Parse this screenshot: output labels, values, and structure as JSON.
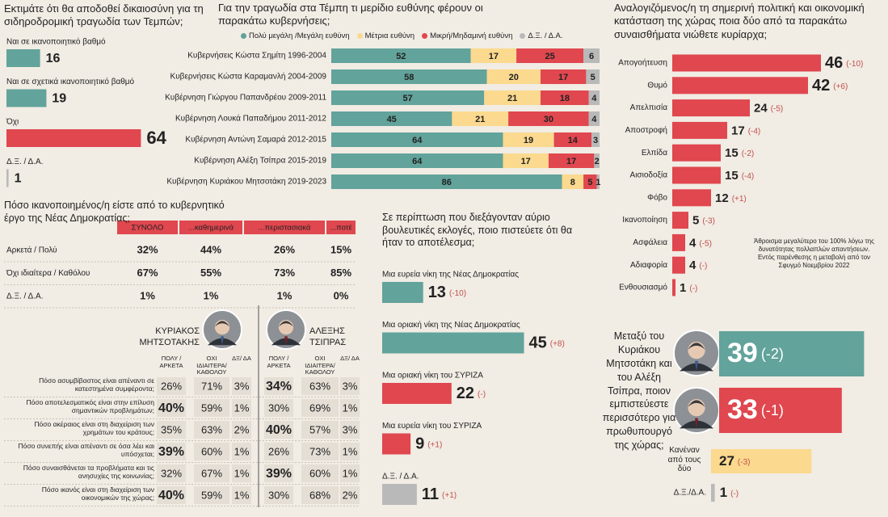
{
  "chart_data": [
    {
      "type": "bar",
      "title": "Εκτιμάτε ότι θα αποδοθεί δικαιοσύνη για τη σιδηροδρομική τραγωδία των Τεμπών;",
      "categories": [
        "Ναι σε ικανοποιητικό βαθμό",
        "Ναι σε σχετικά ικανοποιητικό βαθμό",
        "Όχι",
        "Δ.Ξ. / Δ.Α."
      ],
      "values": [
        16,
        19,
        64,
        1
      ],
      "colors": [
        "#62a39b",
        "#62a39b",
        "#e0474f",
        "#b9b9b9"
      ]
    },
    {
      "type": "stacked_bar",
      "title": "Για την τραγωδία στα Τέμπη τι μερίδιο ευθύνης φέρουν οι παρακάτω κυβερνήσεις;",
      "categories": [
        "Κυβερνήσεις Κώστα Σημίτη 1996-2004",
        "Κυβερνήσεις Κώστα Καραμανλή 2004-2009",
        "Κυβέρνηση Γιώργου Παπανδρέου 2009-2011",
        "Κυβέρνηση Λουκά Παπαδήμου 2011-2012",
        "Κυβέρνηση Αντώνη Σαμαρά 2012-2015",
        "Κυβέρνηση Αλέξη Τσίπρα 2015-2019",
        "Κυβέρνηση Κυριάκου Μητσοτάκη 2019-2023"
      ],
      "series": [
        {
          "name": "Πολύ μεγάλη /Μεγάλη ευθύνη",
          "color": "#62a39b",
          "values": [
            52,
            58,
            57,
            45,
            64,
            64,
            86
          ]
        },
        {
          "name": "Μέτρια ευθύνη",
          "color": "#fbd98e",
          "values": [
            17,
            20,
            21,
            21,
            19,
            17,
            8
          ]
        },
        {
          "name": "Μικρή/Μηδαμινή ευθύνη",
          "color": "#e0474f",
          "values": [
            25,
            17,
            18,
            30,
            14,
            17,
            5
          ]
        },
        {
          "name": "Δ.Ξ. / Δ.Α.",
          "color": "#b9b9b9",
          "values": [
            6,
            5,
            4,
            4,
            3,
            2,
            1
          ]
        }
      ]
    },
    {
      "type": "bar",
      "title": "Αναλογιζόμενος/η τη σημερινή πολιτική και οικονομική κατάσταση της χώρας ποια δύο από τα παρακάτω συναισθήματα νιώθετε κυρίαρχα;",
      "categories": [
        "Απογοήτευση",
        "Θυμό",
        "Απελπισία",
        "Αποστροφή",
        "Ελπίδα",
        "Αισιοδοξία",
        "Φόβο",
        "Ικανοποίηση",
        "Ασφάλεια",
        "Αδιαφορία",
        "Ενθουσιασμό"
      ],
      "values": [
        46,
        42,
        24,
        17,
        15,
        15,
        12,
        5,
        4,
        4,
        1
      ],
      "changes": [
        "(-10)",
        "(+6)",
        "(-5)",
        "(-4)",
        "(-2)",
        "(-4)",
        "(+1)",
        "(-3)",
        "(-5)",
        "(-)",
        "(-)"
      ],
      "color": "#e0474f",
      "note": "Άθροισμα μεγαλύτερο του 100% λόγω της δυνατότητας πολλαπλών απαντήσεων. Εντός παρένθεσης η μεταβολή από τον Σφυγμό Νοεμβρίου 2022"
    },
    {
      "type": "bar",
      "title": "Σε περίπτωση που διεξάγονταν αύριο βουλευτικές εκλογές, ποιο πιστεύετε ότι θα ήταν το αποτέλεσμα;",
      "categories": [
        "Μια ευρεία νίκη της Νέας Δημοκρατίας",
        "Μια οριακή νίκη της Νέας Δημοκρατίας",
        "Μια οριακή νίκη του ΣΥΡΙΖΑ",
        "Μια ευρεία νίκη του ΣΥΡΙΖΑ",
        "Δ.Ξ. / Δ.Α."
      ],
      "values": [
        13,
        45,
        22,
        9,
        11
      ],
      "changes": [
        "(-10)",
        "(+8)",
        "(-)",
        "(+1)",
        "(+1)"
      ],
      "colors": [
        "#62a39b",
        "#62a39b",
        "#e0474f",
        "#e0474f",
        "#b9b9b9"
      ]
    },
    {
      "type": "bar",
      "title": "Μεταξύ του Κυριάκου Μητσοτάκη και του Αλέξη Τσίπρα, ποιον εμπιστεύεστε περισσότερο για πρωθυπουργό της χώρας;",
      "categories": [
        null,
        null,
        "Κανέναν από τους δύο",
        "Δ.Ξ./Δ.Α."
      ],
      "values": [
        39,
        33,
        27,
        1
      ],
      "changes": [
        "(-2)",
        "(-1)",
        "(-3)",
        "(-)"
      ],
      "colors": [
        "#62a39b",
        "#e0474f",
        "#fbd98e",
        "#b9b9b9"
      ]
    }
  ],
  "satisfaction_table": {
    "title": "Πόσο ικανοποιημένος/η είστε από το κυβερνητικό έργο της Νέας Δημοκρατίας;",
    "columns": [
      "ΣΥΝΟΛΟ",
      "...καθημερινά",
      "...περιστασιακά",
      "...ποτέ"
    ],
    "rows": [
      {
        "label": "Αρκετά / Πολύ",
        "cells": [
          "32%",
          "44%",
          "26%",
          "15%"
        ]
      },
      {
        "label": "Όχι ιδιαίτερα / Καθόλου",
        "cells": [
          "67%",
          "55%",
          "73%",
          "85%"
        ]
      },
      {
        "label": "Δ.Ξ. / Δ.Α.",
        "cells": [
          "1%",
          "1%",
          "1%",
          "0%"
        ]
      }
    ]
  },
  "leaders_table": {
    "leaders": [
      "ΚΥΡΙΑΚΟΣ ΜΗΤΣΟΤΑΚΗΣ",
      "ΑΛΕΞΗΣ ΤΣΙΠΡΑΣ"
    ],
    "columns": [
      "ΠΟΛΥ / ΑΡΚΕΤΑ",
      "ΟΧΙ ΙΔΙΑΙΤΕΡΑ/ ΚΑΘΟΛΟΥ",
      "ΔΞ/ ΔΑ"
    ],
    "rows": [
      {
        "question": "Πόσο ασυμβίβαστος είναι απέναντι σε κατεστημένα συμφέροντα;",
        "cells": [
          [
            "26%",
            "71%",
            "3%"
          ],
          [
            "34%",
            "63%",
            "3%"
          ]
        ]
      },
      {
        "question": "Πόσο αποτελεσματικός είναι στην επίλυση σημαντικών προβλημάτων;",
        "cells": [
          [
            "40%",
            "59%",
            "1%"
          ],
          [
            "30%",
            "69%",
            "1%"
          ]
        ]
      },
      {
        "question": "Πόσο ακέραιος είναι στη διαχείριση των χρημάτων του κράτους;",
        "cells": [
          [
            "35%",
            "63%",
            "2%"
          ],
          [
            "40%",
            "57%",
            "3%"
          ]
        ]
      },
      {
        "question": "Πόσο συνεπής είναι απέναντι σε όσα λέει και υπόσχεται;",
        "cells": [
          [
            "39%",
            "60%",
            "1%"
          ],
          [
            "26%",
            "73%",
            "1%"
          ]
        ]
      },
      {
        "question": "Πόσο συναισθάνεται τα προβλήματα και τις ανησυχίες της κοινωνίας;",
        "cells": [
          [
            "32%",
            "67%",
            "1%"
          ],
          [
            "39%",
            "60%",
            "1%"
          ]
        ]
      },
      {
        "question": "Πόσο ικανός είναι στη διαχείριση των οικονομικών της χώρας;",
        "cells": [
          [
            "40%",
            "59%",
            "1%"
          ],
          [
            "30%",
            "68%",
            "2%"
          ]
        ]
      }
    ]
  }
}
